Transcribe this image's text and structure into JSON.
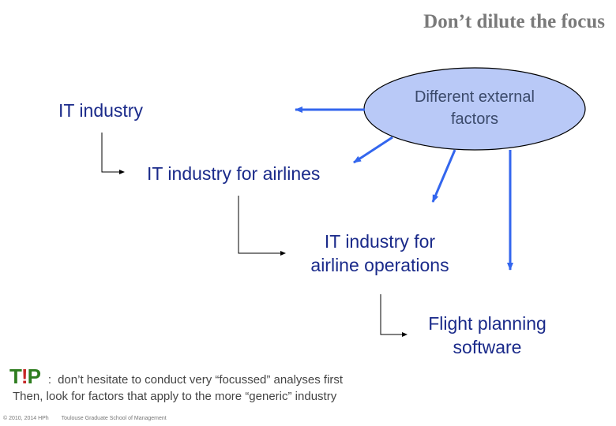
{
  "title": "Don’t dilute the focus",
  "ellipse": {
    "label_line1": "Different external",
    "label_line2": "factors"
  },
  "nodes": {
    "level1": "IT industry",
    "level2": "IT industry for airlines",
    "level3_line1": "IT industry for",
    "level3_line2": "airline operations",
    "level4_line1": "Flight planning",
    "level4_line2": "software"
  },
  "tip": {
    "badge_t": "T",
    "badge_bang": "!",
    "badge_p": "P",
    "separator": ":",
    "line1": "don’t hesitate to conduct very “focussed” analyses first",
    "line2": "Then, look for factors that apply to the more “generic” industry"
  },
  "footer": {
    "copyright": "© 2010, 2014 HPh",
    "school": "Toulouse Graduate School of Management"
  },
  "colors": {
    "ellipse_fill": "#b9c9f7",
    "arrow": "#3366ee",
    "node_text": "#1a2a8a",
    "title": "#7a7a7a"
  }
}
